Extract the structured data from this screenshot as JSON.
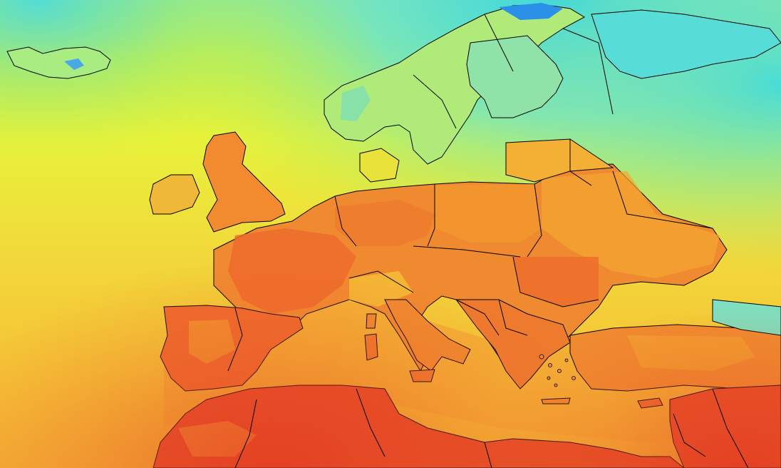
{
  "map": {
    "colors": {
      "cyan": "#38d6e0",
      "aqua": "#6fe8c0",
      "green_yellow": "#b8f04a",
      "yellow": "#e8f23a",
      "light_orange": "#f5c236",
      "orange": "#f39a2e",
      "red_orange": "#ee6a2c",
      "red": "#e23a22",
      "blue_patch": "#2a90e8",
      "border": "#000000"
    },
    "legend": [],
    "title": ""
  }
}
